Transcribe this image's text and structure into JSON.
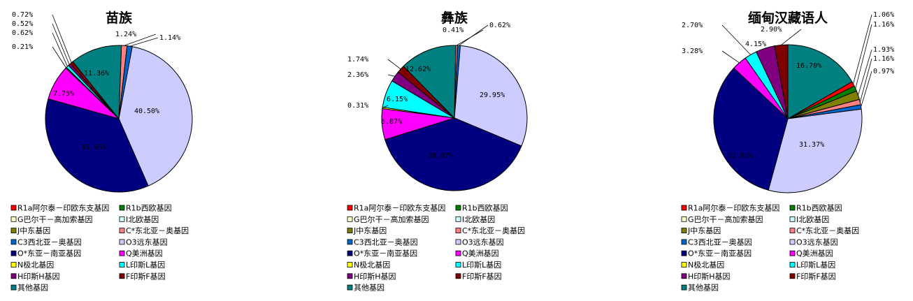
{
  "legend_labels": [
    "R1a阿尔泰－印欧东支基因",
    "R1b西欧基因",
    "G巴尔干－高加索基因",
    "I北欧基因",
    "J中东基因",
    "C*东北亚－奥基因",
    "C3西北亚－奥基因",
    "O3远东基因",
    "O*东亚－南亚基因",
    "Q美洲基因",
    "N极北基因",
    "L印斯L基因",
    "H印斯H基因",
    "F印斯F基因",
    "其他基因"
  ],
  "colors": [
    "#ff0000",
    "#008000",
    "#ffffcc",
    "#ccffff",
    "#808000",
    "#ff8080",
    "#0066cc",
    "#ccccff",
    "#000080",
    "#ff00ff",
    "#ffff00",
    "#00ffff",
    "#800080",
    "#800000",
    "#008080"
  ],
  "chart_data": [
    {
      "type": "pie",
      "title": "苗族",
      "categories": [
        "R1a阿尔泰－印欧东支基因",
        "R1b西欧基因",
        "G巴尔干－高加索基因",
        "I北欧基因",
        "J中东基因",
        "C*东北亚－奥基因",
        "C3西北亚－奥基因",
        "O3远东基因",
        "O*东亚－南亚基因",
        "Q美洲基因",
        "N极北基因",
        "L印斯L基因",
        "H印斯H基因",
        "F印斯F基因",
        "其他基因"
      ],
      "values": [
        0,
        0,
        0,
        0,
        0,
        1.24,
        1.14,
        40.5,
        35.95,
        7.75,
        0.21,
        0.62,
        0.52,
        0.72,
        11.36
      ],
      "data_labels": [
        "",
        "",
        "",
        "",
        "",
        "1.24%",
        "1.14%",
        "40.50%",
        "35.95%",
        "7.75%",
        "0.21%",
        "0.62%",
        "0.52%",
        "0.72%",
        "11.36%"
      ]
    },
    {
      "type": "pie",
      "title": "彝族",
      "categories": [
        "R1a阿尔泰－印欧东支基因",
        "R1b西欧基因",
        "G巴尔干－高加索基因",
        "I北欧基因",
        "J中东基因",
        "C*东北亚－奥基因",
        "C3西北亚－奥基因",
        "O3远东基因",
        "O*东亚－南亚基因",
        "Q美洲基因",
        "N极北基因",
        "L印斯L基因",
        "H印斯H基因",
        "F印斯F基因",
        "其他基因"
      ],
      "values": [
        0,
        0,
        0,
        0,
        0,
        0.41,
        0.62,
        29.95,
        38.87,
        6.87,
        0.31,
        6.15,
        2.36,
        1.74,
        12.62
      ],
      "data_labels": [
        "",
        "",
        "",
        "",
        "",
        "0.41%",
        "0.62%",
        "29.95%",
        "38.87%",
        "6.87%",
        "0.31%",
        "6.15%",
        "2.36%",
        "1.74%",
        "12.62%"
      ]
    },
    {
      "type": "pie",
      "title": "缅甸汉藏语人",
      "categories": [
        "R1a阿尔泰－印欧东支基因",
        "R1b西欧基因",
        "G巴尔干－高加索基因",
        "I北欧基因",
        "J中东基因",
        "C*东北亚－奥基因",
        "C3西北亚－奥基因",
        "O3远东基因",
        "O*东亚－南亚基因",
        "Q美洲基因",
        "N极北基因",
        "L印斯L基因",
        "H印斯H基因",
        "F印斯F基因",
        "其他基因"
      ],
      "values": [
        1.06,
        1.16,
        0,
        0,
        1.93,
        1.16,
        0.97,
        31.37,
        32.83,
        3.28,
        0,
        2.7,
        4.15,
        2.9,
        16.7
      ],
      "data_labels": [
        "1.06%",
        "1.16%",
        "",
        "",
        "1.93%",
        "1.16%",
        "0.97%",
        "31.37%",
        "32.83%",
        "3.28%",
        "",
        "2.70%",
        "4.15%",
        "2.90%",
        "16.70%"
      ]
    }
  ]
}
